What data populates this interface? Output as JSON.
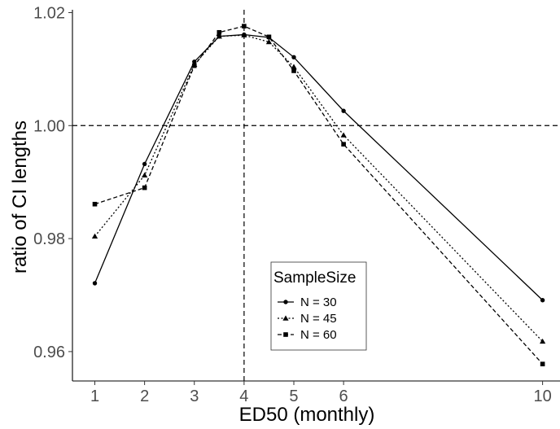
{
  "chart_data": {
    "type": "line",
    "title": "",
    "xlabel": "ED50 (monthly)",
    "ylabel": "ratio of CI lengths",
    "xlim": [
      0.55,
      10.35
    ],
    "ylim": [
      0.9548,
      1.0205
    ],
    "x_ticks": [
      1,
      2,
      3,
      4,
      5,
      6,
      10
    ],
    "x_tick_labels": [
      "1",
      "2",
      "3",
      "4",
      "5",
      "6",
      "10"
    ],
    "y_ticks": [
      0.96,
      0.98,
      1.0,
      1.02
    ],
    "y_tick_labels": [
      "0.96",
      "0.98",
      "1.00",
      "1.02"
    ],
    "grid": false,
    "reference_lines": {
      "vertical_x": 4,
      "horizontal_y": 1.0
    },
    "legend": {
      "title": "SampleSize",
      "position": "bottom-center"
    },
    "series": [
      {
        "name": "N = 30",
        "marker": "circle",
        "dash": "solid",
        "x": [
          1,
          2,
          3,
          3.5,
          4,
          4.5,
          5,
          6,
          10
        ],
        "y": [
          0.9721,
          0.9932,
          1.0113,
          1.0158,
          1.0161,
          1.0156,
          1.0121,
          1.0026,
          0.9691
        ]
      },
      {
        "name": "N = 45",
        "marker": "triangle",
        "dash": "dotted",
        "x": [
          1,
          2,
          3,
          3.5,
          4,
          4.5,
          5,
          6,
          10
        ],
        "y": [
          0.9804,
          0.9912,
          1.0108,
          1.0158,
          1.016,
          1.0148,
          1.0104,
          0.9983,
          0.9618
        ]
      },
      {
        "name": "N = 60",
        "marker": "square",
        "dash": "dashed",
        "x": [
          1,
          2,
          3,
          3.5,
          4,
          4.5,
          5,
          6,
          10
        ],
        "y": [
          0.9861,
          0.989,
          1.0106,
          1.0165,
          1.0176,
          1.0157,
          1.0097,
          0.9967,
          0.9578
        ]
      }
    ]
  }
}
